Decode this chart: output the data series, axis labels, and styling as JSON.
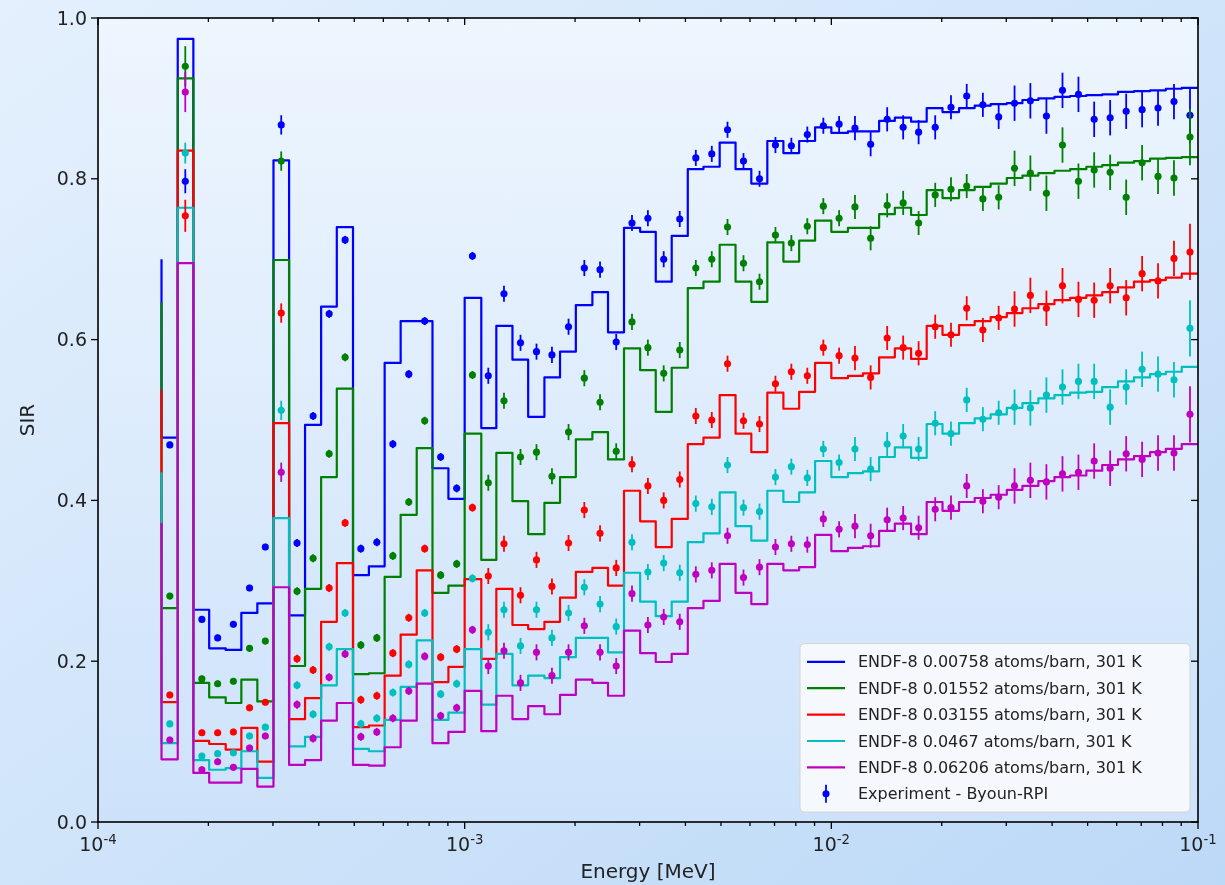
{
  "chart_data": {
    "type": "step",
    "xlabel": "Energy [MeV]",
    "ylabel": "SIR",
    "log": "x",
    "xlim": [
      0.0001,
      0.1
    ],
    "xticks": [
      {
        "value": 0.0001,
        "label": "10$^{-4}$"
      },
      {
        "value": 0.0002,
        "label": null
      },
      {
        "value": 0.0003,
        "label": null
      },
      {
        "value": 0.0004,
        "label": null
      },
      {
        "value": 0.0005,
        "label": null
      },
      {
        "value": 0.0006,
        "label": null
      },
      {
        "value": 0.0007,
        "label": null
      },
      {
        "value": 0.0008,
        "label": null
      },
      {
        "value": 0.0009,
        "label": null
      },
      {
        "value": 0.001,
        "label": "10$^{-3}$"
      },
      {
        "value": 0.002,
        "label": null
      },
      {
        "value": 0.003,
        "label": null
      },
      {
        "value": 0.004,
        "label": null
      },
      {
        "value": 0.005,
        "label": null
      },
      {
        "value": 0.006,
        "label": null
      },
      {
        "value": 0.007,
        "label": null
      },
      {
        "value": 0.008,
        "label": null
      },
      {
        "value": 0.009,
        "label": null
      },
      {
        "value": 0.01,
        "label": "10$^{-2}$"
      },
      {
        "value": 0.02,
        "label": null
      },
      {
        "value": 0.03,
        "label": null
      },
      {
        "value": 0.04,
        "label": null
      },
      {
        "value": 0.05,
        "label": null
      },
      {
        "value": 0.06,
        "label": null
      },
      {
        "value": 0.07,
        "label": null
      },
      {
        "value": 0.08,
        "label": null
      },
      {
        "value": 0.09,
        "label": null
      },
      {
        "value": 0.1,
        "label": "10$^{-1}$"
      }
    ],
    "ylim": [
      0,
      1
    ],
    "yticks": [
      {
        "value": 0,
        "label": "0.0"
      },
      {
        "value": 0.2,
        "label": "0.2"
      },
      {
        "value": 0.4,
        "label": "0.4"
      },
      {
        "value": 0.6,
        "label": "0.6"
      },
      {
        "value": 0.8,
        "label": "0.8"
      },
      {
        "value": 1,
        "label": "1.0"
      }
    ],
    "legend": "bottom right",
    "series": [
      {
        "name": "ENDF-8 0.00758 atoms/barn, 301 K",
        "color": "#0000ff",
        "x": [
          0.000149,
          0.000149,
          0.000165,
          0.000182,
          0.000201,
          0.000223,
          0.000246,
          0.000272,
          0.000301,
          0.000332,
          0.000367,
          0.000406,
          0.000448,
          0.000496,
          0.000548,
          0.000605,
          0.000669,
          0.00074,
          0.000817,
          0.000903,
          0.001,
          0.00111,
          0.00122,
          0.00135,
          0.00149,
          0.00165,
          0.00182,
          0.00201,
          0.00223,
          0.00246,
          0.00272,
          0.00301,
          0.00332,
          0.00367,
          0.00406,
          0.00448,
          0.00496,
          0.00548,
          0.00605,
          0.00669,
          0.0074,
          0.00817,
          0.00903,
          0.01,
          0.0111,
          0.0122,
          0.0135,
          0.0149,
          0.0165,
          0.0182,
          0.0201,
          0.0223,
          0.0246,
          0.0272,
          0.0301,
          0.0332,
          0.0367,
          0.0406,
          0.0448,
          0.0496,
          0.0548,
          0.0605,
          0.0669,
          0.074,
          0.0817,
          0.0903,
          0.1
        ],
        "values": [
          0.7,
          0.478,
          0.974,
          0.264,
          0.216,
          0.214,
          0.26,
          0.272,
          0.823,
          0.257,
          0.494,
          0.641,
          0.74,
          0.307,
          0.318,
          0.571,
          0.623,
          0.623,
          0.44,
          0.402,
          0.652,
          0.49,
          0.617,
          0.575,
          0.504,
          0.553,
          0.585,
          0.643,
          0.659,
          0.609,
          0.739,
          0.734,
          0.672,
          0.729,
          0.812,
          0.815,
          0.845,
          0.812,
          0.794,
          0.847,
          0.832,
          0.847,
          0.864,
          0.857,
          0.859,
          0.859,
          0.872,
          0.876,
          0.871,
          0.888,
          0.883,
          0.888,
          0.891,
          0.893,
          0.894,
          0.898,
          0.9,
          0.902,
          0.903,
          0.904,
          0.905,
          0.908,
          0.909,
          0.91,
          0.912,
          0.913,
          0.913
        ]
      },
      {
        "name": "ENDF-8 0.01552 atoms/barn, 301 K",
        "color": "#008000",
        "x": [
          0.000149,
          0.000149,
          0.000165,
          0.000182,
          0.000201,
          0.000223,
          0.000246,
          0.000272,
          0.000301,
          0.000332,
          0.000367,
          0.000406,
          0.000448,
          0.000496,
          0.000548,
          0.000605,
          0.000669,
          0.00074,
          0.000817,
          0.000903,
          0.001,
          0.00111,
          0.00122,
          0.00135,
          0.00149,
          0.00165,
          0.00182,
          0.00201,
          0.00223,
          0.00246,
          0.00272,
          0.00301,
          0.00332,
          0.00367,
          0.00406,
          0.00448,
          0.00496,
          0.00548,
          0.00605,
          0.00669,
          0.0074,
          0.00817,
          0.00903,
          0.01,
          0.0111,
          0.0122,
          0.0135,
          0.0149,
          0.0165,
          0.0182,
          0.0201,
          0.0223,
          0.0246,
          0.0272,
          0.0301,
          0.0332,
          0.0367,
          0.0406,
          0.0448,
          0.0496,
          0.0548,
          0.0605,
          0.0669,
          0.074,
          0.0817,
          0.0903,
          0.1
        ],
        "values": [
          0.646,
          0.266,
          0.925,
          0.173,
          0.155,
          0.148,
          0.177,
          0.15,
          0.699,
          0.194,
          0.29,
          0.429,
          0.539,
          0.184,
          0.185,
          0.305,
          0.382,
          0.465,
          0.285,
          0.294,
          0.483,
          0.326,
          0.459,
          0.399,
          0.358,
          0.397,
          0.429,
          0.476,
          0.485,
          0.451,
          0.589,
          0.562,
          0.51,
          0.565,
          0.664,
          0.672,
          0.718,
          0.672,
          0.647,
          0.721,
          0.697,
          0.723,
          0.748,
          0.734,
          0.739,
          0.739,
          0.756,
          0.764,
          0.755,
          0.786,
          0.776,
          0.786,
          0.79,
          0.794,
          0.801,
          0.804,
          0.807,
          0.81,
          0.812,
          0.815,
          0.817,
          0.82,
          0.822,
          0.825,
          0.826,
          0.827,
          0.827
        ]
      },
      {
        "name": "ENDF-8 0.03155 atoms/barn, 301 K",
        "color": "#ff0000",
        "x": [
          0.000149,
          0.000149,
          0.000165,
          0.000182,
          0.000201,
          0.000223,
          0.000246,
          0.000272,
          0.000301,
          0.000332,
          0.000367,
          0.000406,
          0.000448,
          0.000496,
          0.000548,
          0.000605,
          0.000669,
          0.00074,
          0.000817,
          0.000903,
          0.001,
          0.00111,
          0.00122,
          0.00135,
          0.00149,
          0.00165,
          0.00182,
          0.00201,
          0.00223,
          0.00246,
          0.00272,
          0.00301,
          0.00332,
          0.00367,
          0.00406,
          0.00448,
          0.00496,
          0.00548,
          0.00605,
          0.00669,
          0.0074,
          0.00817,
          0.00903,
          0.01,
          0.0111,
          0.0122,
          0.0135,
          0.0149,
          0.0165,
          0.0182,
          0.0201,
          0.0223,
          0.0246,
          0.0272,
          0.0301,
          0.0332,
          0.0367,
          0.0406,
          0.0448,
          0.0496,
          0.0548,
          0.0605,
          0.0669,
          0.074,
          0.0817,
          0.0903,
          0.1
        ],
        "values": [
          0.537,
          0.149,
          0.835,
          0.101,
          0.097,
          0.09,
          0.117,
          0.075,
          0.496,
          0.128,
          0.154,
          0.249,
          0.322,
          0.118,
          0.12,
          0.182,
          0.233,
          0.313,
          0.174,
          0.193,
          0.302,
          0.203,
          0.29,
          0.245,
          0.24,
          0.249,
          0.279,
          0.311,
          0.316,
          0.294,
          0.412,
          0.374,
          0.342,
          0.377,
          0.47,
          0.478,
          0.531,
          0.483,
          0.46,
          0.534,
          0.514,
          0.535,
          0.571,
          0.552,
          0.555,
          0.558,
          0.578,
          0.589,
          0.576,
          0.617,
          0.606,
          0.618,
          0.623,
          0.628,
          0.633,
          0.639,
          0.644,
          0.649,
          0.652,
          0.655,
          0.659,
          0.665,
          0.672,
          0.674,
          0.677,
          0.682,
          0.682
        ]
      },
      {
        "name": "ENDF-8 0.0467 atoms/barn, 301 K",
        "color": "#00bfbf",
        "x": [
          0.000149,
          0.000149,
          0.000165,
          0.000182,
          0.000201,
          0.000223,
          0.000246,
          0.000272,
          0.000301,
          0.000332,
          0.000367,
          0.000406,
          0.000448,
          0.000496,
          0.000548,
          0.000605,
          0.000669,
          0.00074,
          0.000817,
          0.000903,
          0.001,
          0.00111,
          0.00122,
          0.00135,
          0.00149,
          0.00165,
          0.00182,
          0.00201,
          0.00223,
          0.00246,
          0.00272,
          0.00301,
          0.00332,
          0.00367,
          0.00406,
          0.00448,
          0.00496,
          0.00548,
          0.00605,
          0.00669,
          0.0074,
          0.00817,
          0.00903,
          0.01,
          0.0111,
          0.0122,
          0.0135,
          0.0149,
          0.0165,
          0.0182,
          0.0201,
          0.0223,
          0.0246,
          0.0272,
          0.0301,
          0.0332,
          0.0367,
          0.0406,
          0.0448,
          0.0496,
          0.0548,
          0.0605,
          0.0669,
          0.074,
          0.0817,
          0.0903,
          0.1
        ],
        "values": [
          0.435,
          0.098,
          0.764,
          0.077,
          0.065,
          0.067,
          0.088,
          0.055,
          0.378,
          0.094,
          0.106,
          0.17,
          0.215,
          0.091,
          0.088,
          0.127,
          0.168,
          0.226,
          0.127,
          0.136,
          0.215,
          0.146,
          0.209,
          0.17,
          0.182,
          0.179,
          0.205,
          0.229,
          0.229,
          0.211,
          0.31,
          0.274,
          0.256,
          0.274,
          0.348,
          0.359,
          0.41,
          0.368,
          0.35,
          0.412,
          0.398,
          0.41,
          0.449,
          0.429,
          0.434,
          0.436,
          0.454,
          0.466,
          0.453,
          0.495,
          0.483,
          0.496,
          0.502,
          0.507,
          0.515,
          0.521,
          0.527,
          0.531,
          0.534,
          0.535,
          0.541,
          0.548,
          0.553,
          0.557,
          0.56,
          0.566,
          0.566
        ]
      },
      {
        "name": "ENDF-8 0.06206 atoms/barn, 301 K",
        "color": "#bf00bf",
        "x": [
          0.000149,
          0.000149,
          0.000165,
          0.000182,
          0.000201,
          0.000223,
          0.000246,
          0.000272,
          0.000301,
          0.000332,
          0.000367,
          0.000406,
          0.000448,
          0.000496,
          0.000548,
          0.000605,
          0.000669,
          0.00074,
          0.000817,
          0.000903,
          0.001,
          0.00111,
          0.00122,
          0.00135,
          0.00149,
          0.00165,
          0.00182,
          0.00201,
          0.00223,
          0.00246,
          0.00272,
          0.00301,
          0.00332,
          0.00367,
          0.00406,
          0.00448,
          0.00496,
          0.00548,
          0.00605,
          0.00669,
          0.0074,
          0.00817,
          0.00903,
          0.01,
          0.0111,
          0.0122,
          0.0135,
          0.0149,
          0.0165,
          0.0182,
          0.0201,
          0.0223,
          0.0246,
          0.0272,
          0.0301,
          0.0332,
          0.0367,
          0.0406,
          0.0448,
          0.0496,
          0.0548,
          0.0605,
          0.0669,
          0.074,
          0.0817,
          0.0903,
          0.1
        ],
        "values": [
          0.372,
          0.078,
          0.695,
          0.061,
          0.049,
          0.049,
          0.066,
          0.044,
          0.292,
          0.071,
          0.077,
          0.126,
          0.148,
          0.071,
          0.07,
          0.093,
          0.126,
          0.172,
          0.098,
          0.112,
          0.163,
          0.113,
          0.157,
          0.128,
          0.144,
          0.134,
          0.158,
          0.177,
          0.173,
          0.157,
          0.238,
          0.21,
          0.199,
          0.209,
          0.266,
          0.275,
          0.321,
          0.285,
          0.271,
          0.321,
          0.313,
          0.317,
          0.357,
          0.337,
          0.341,
          0.343,
          0.362,
          0.371,
          0.358,
          0.398,
          0.387,
          0.398,
          0.403,
          0.407,
          0.413,
          0.418,
          0.424,
          0.429,
          0.431,
          0.437,
          0.444,
          0.451,
          0.455,
          0.46,
          0.464,
          0.47,
          0.47
        ]
      },
      {
        "name": "Experiment - Byoun-RPI",
        "type": "scatter",
        "marker": "circle",
        "color": "#0000ff",
        "x": [
          0.000157,
          0.000173,
          0.000192,
          0.000212,
          0.000234,
          0.000259,
          0.000286,
          0.000316,
          0.000349,
          0.000386,
          0.000427,
          0.000472,
          0.000521,
          0.000576,
          0.000637,
          0.000704,
          0.000778,
          0.00086,
          0.000951,
          0.00105,
          0.00116,
          0.00128,
          0.00142,
          0.00157,
          0.00173,
          0.00192,
          0.00212,
          0.00234,
          0.00259,
          0.00286,
          0.00316,
          0.00349,
          0.00386,
          0.00427,
          0.00472,
          0.00521,
          0.00576,
          0.00637,
          0.00704,
          0.00778,
          0.0086,
          0.00951,
          0.0105,
          0.0116,
          0.0128,
          0.0142,
          0.0157,
          0.0173,
          0.0192,
          0.0212,
          0.0234,
          0.0259,
          0.0286,
          0.0316,
          0.0349,
          0.0386,
          0.0427,
          0.0472,
          0.0521,
          0.0576,
          0.0637,
          0.0704,
          0.0778,
          0.086,
          0.0951
        ],
        "values": [
          0.469,
          0.797,
          0.252,
          0.229,
          0.246,
          0.291,
          0.342,
          0.867,
          0.347,
          0.505,
          0.632,
          0.724,
          0.34,
          0.348,
          0.47,
          0.557,
          0.623,
          0.454,
          0.415,
          0.704,
          0.555,
          0.657,
          0.596,
          0.585,
          0.581,
          0.616,
          0.689,
          0.687,
          0.597,
          0.745,
          0.751,
          0.7,
          0.75,
          0.826,
          0.831,
          0.861,
          0.822,
          0.8,
          0.842,
          0.841,
          0.855,
          0.866,
          0.868,
          0.863,
          0.843,
          0.874,
          0.864,
          0.858,
          0.864,
          0.889,
          0.903,
          0.892,
          0.877,
          0.894,
          0.897,
          0.878,
          0.91,
          0.905,
          0.874,
          0.876,
          0.884,
          0.886,
          0.888,
          0.896,
          0.879
        ],
        "errors": [
          0.004,
          0.015,
          0.004,
          0.004,
          0.004,
          0.004,
          0.004,
          0.012,
          0.005,
          0.005,
          0.005,
          0.005,
          0.005,
          0.005,
          0.005,
          0.005,
          0.005,
          0.005,
          0.005,
          0.005,
          0.01,
          0.01,
          0.01,
          0.01,
          0.01,
          0.01,
          0.01,
          0.01,
          0.01,
          0.01,
          0.01,
          0.01,
          0.01,
          0.01,
          0.01,
          0.01,
          0.01,
          0.01,
          0.01,
          0.01,
          0.01,
          0.01,
          0.01,
          0.015,
          0.015,
          0.015,
          0.015,
          0.015,
          0.015,
          0.015,
          0.015,
          0.015,
          0.015,
          0.022,
          0.022,
          0.022,
          0.022,
          0.022,
          0.022,
          0.022,
          0.022,
          0.022,
          0.022,
          0.022,
          0.035
        ]
      },
      {
        "type": "scatter",
        "marker": "circle",
        "color": "#008000",
        "x": [
          0.000157,
          0.000173,
          0.000192,
          0.000212,
          0.000234,
          0.000259,
          0.000286,
          0.000316,
          0.000349,
          0.000386,
          0.000427,
          0.000472,
          0.000521,
          0.000576,
          0.000637,
          0.000704,
          0.000778,
          0.00086,
          0.000951,
          0.00105,
          0.00116,
          0.00128,
          0.00142,
          0.00157,
          0.00173,
          0.00192,
          0.00212,
          0.00234,
          0.00259,
          0.00286,
          0.00316,
          0.00349,
          0.00386,
          0.00427,
          0.00472,
          0.00521,
          0.00576,
          0.00637,
          0.00704,
          0.00778,
          0.0086,
          0.00951,
          0.0105,
          0.0116,
          0.0128,
          0.0142,
          0.0157,
          0.0173,
          0.0192,
          0.0212,
          0.0234,
          0.0259,
          0.0286,
          0.0316,
          0.0349,
          0.0386,
          0.0427,
          0.0472,
          0.0521,
          0.0576,
          0.0637,
          0.0704,
          0.0778,
          0.086,
          0.0951
        ],
        "values": [
          0.281,
          0.94,
          0.178,
          0.172,
          0.175,
          0.216,
          0.225,
          0.822,
          0.287,
          0.328,
          0.458,
          0.578,
          0.22,
          0.229,
          0.331,
          0.398,
          0.499,
          0.307,
          0.321,
          0.556,
          0.422,
          0.524,
          0.454,
          0.46,
          0.43,
          0.485,
          0.552,
          0.522,
          0.461,
          0.622,
          0.59,
          0.558,
          0.587,
          0.689,
          0.7,
          0.74,
          0.695,
          0.672,
          0.73,
          0.72,
          0.741,
          0.766,
          0.751,
          0.765,
          0.726,
          0.767,
          0.77,
          0.745,
          0.78,
          0.787,
          0.791,
          0.775,
          0.777,
          0.813,
          0.807,
          0.782,
          0.842,
          0.797,
          0.811,
          0.808,
          0.777,
          0.82,
          0.803,
          0.801,
          0.852
        ],
        "errors": [
          0.004,
          0.025,
          0.004,
          0.004,
          0.004,
          0.004,
          0.004,
          0.012,
          0.005,
          0.005,
          0.005,
          0.005,
          0.005,
          0.005,
          0.005,
          0.005,
          0.005,
          0.005,
          0.005,
          0.005,
          0.01,
          0.01,
          0.01,
          0.01,
          0.01,
          0.01,
          0.01,
          0.01,
          0.01,
          0.01,
          0.01,
          0.01,
          0.01,
          0.01,
          0.01,
          0.01,
          0.01,
          0.01,
          0.01,
          0.01,
          0.01,
          0.01,
          0.01,
          0.015,
          0.015,
          0.015,
          0.015,
          0.015,
          0.015,
          0.015,
          0.015,
          0.015,
          0.015,
          0.022,
          0.022,
          0.022,
          0.022,
          0.022,
          0.022,
          0.022,
          0.022,
          0.022,
          0.022,
          0.022,
          0.035
        ]
      },
      {
        "type": "scatter",
        "marker": "circle",
        "color": "#ff0000",
        "x": [
          0.000157,
          0.000173,
          0.000192,
          0.000212,
          0.000234,
          0.000259,
          0.000286,
          0.000316,
          0.000349,
          0.000386,
          0.000427,
          0.000472,
          0.000521,
          0.000576,
          0.000637,
          0.000704,
          0.000778,
          0.00086,
          0.000951,
          0.00105,
          0.00116,
          0.00128,
          0.00142,
          0.00157,
          0.00173,
          0.00192,
          0.00212,
          0.00234,
          0.00259,
          0.00286,
          0.00316,
          0.00349,
          0.00386,
          0.00427,
          0.00472,
          0.00521,
          0.00576,
          0.00637,
          0.00704,
          0.00778,
          0.0086,
          0.00951,
          0.0105,
          0.0116,
          0.0128,
          0.0142,
          0.0157,
          0.0173,
          0.0192,
          0.0212,
          0.0234,
          0.0259,
          0.0286,
          0.0316,
          0.0349,
          0.0386,
          0.0427,
          0.0472,
          0.0521,
          0.0576,
          0.0637,
          0.0704,
          0.0778,
          0.086,
          0.0951
        ],
        "values": [
          0.158,
          0.754,
          0.111,
          0.111,
          0.112,
          0.142,
          0.149,
          0.633,
          0.203,
          0.189,
          0.291,
          0.372,
          0.152,
          0.157,
          0.21,
          0.254,
          0.34,
          0.205,
          0.215,
          0.391,
          0.306,
          0.346,
          0.282,
          0.326,
          0.293,
          0.347,
          0.388,
          0.359,
          0.316,
          0.445,
          0.418,
          0.4,
          0.426,
          0.505,
          0.5,
          0.57,
          0.499,
          0.495,
          0.545,
          0.56,
          0.555,
          0.59,
          0.58,
          0.577,
          0.553,
          0.602,
          0.59,
          0.583,
          0.616,
          0.606,
          0.639,
          0.612,
          0.627,
          0.638,
          0.655,
          0.639,
          0.667,
          0.65,
          0.649,
          0.667,
          0.652,
          0.682,
          0.673,
          0.701,
          0.709
        ],
        "errors": [
          0.004,
          0.02,
          0.004,
          0.004,
          0.004,
          0.004,
          0.004,
          0.012,
          0.005,
          0.005,
          0.005,
          0.005,
          0.005,
          0.005,
          0.005,
          0.005,
          0.005,
          0.005,
          0.005,
          0.005,
          0.01,
          0.01,
          0.01,
          0.01,
          0.01,
          0.01,
          0.01,
          0.01,
          0.01,
          0.01,
          0.01,
          0.01,
          0.01,
          0.01,
          0.01,
          0.01,
          0.01,
          0.01,
          0.01,
          0.01,
          0.01,
          0.01,
          0.01,
          0.015,
          0.015,
          0.015,
          0.015,
          0.015,
          0.015,
          0.015,
          0.015,
          0.015,
          0.015,
          0.022,
          0.022,
          0.022,
          0.022,
          0.022,
          0.022,
          0.022,
          0.022,
          0.022,
          0.022,
          0.022,
          0.035
        ]
      },
      {
        "type": "scatter",
        "marker": "circle",
        "color": "#00bfbf",
        "x": [
          0.000157,
          0.000173,
          0.000192,
          0.000212,
          0.000234,
          0.000259,
          0.000286,
          0.000316,
          0.000349,
          0.000386,
          0.000427,
          0.000472,
          0.000521,
          0.000576,
          0.000637,
          0.000704,
          0.000778,
          0.00086,
          0.000951,
          0.00105,
          0.00116,
          0.00128,
          0.00142,
          0.00157,
          0.00173,
          0.00192,
          0.00212,
          0.00234,
          0.00259,
          0.00286,
          0.00316,
          0.00349,
          0.00386,
          0.00427,
          0.00472,
          0.00521,
          0.00576,
          0.00637,
          0.00704,
          0.00778,
          0.0086,
          0.00951,
          0.0105,
          0.0116,
          0.0128,
          0.0142,
          0.0157,
          0.0173,
          0.0192,
          0.0212,
          0.0234,
          0.0259,
          0.0286,
          0.0316,
          0.0349,
          0.0386,
          0.0427,
          0.0472,
          0.0521,
          0.0576,
          0.0637,
          0.0704,
          0.0778,
          0.086,
          0.0951
        ],
        "values": [
          0.122,
          0.832,
          0.082,
          0.085,
          0.086,
          0.107,
          0.118,
          0.512,
          0.17,
          0.134,
          0.218,
          0.26,
          0.122,
          0.129,
          0.161,
          0.196,
          0.26,
          0.159,
          0.172,
          0.303,
          0.236,
          0.264,
          0.219,
          0.264,
          0.229,
          0.26,
          0.292,
          0.271,
          0.243,
          0.348,
          0.311,
          0.322,
          0.31,
          0.396,
          0.392,
          0.444,
          0.391,
          0.386,
          0.429,
          0.442,
          0.428,
          0.464,
          0.447,
          0.464,
          0.439,
          0.47,
          0.48,
          0.464,
          0.496,
          0.483,
          0.525,
          0.501,
          0.509,
          0.516,
          0.515,
          0.531,
          0.541,
          0.548,
          0.548,
          0.516,
          0.541,
          0.563,
          0.557,
          0.55,
          0.614
        ],
        "errors": [
          0.004,
          0.013,
          0.004,
          0.004,
          0.004,
          0.004,
          0.004,
          0.012,
          0.005,
          0.005,
          0.005,
          0.005,
          0.005,
          0.005,
          0.005,
          0.005,
          0.005,
          0.005,
          0.005,
          0.005,
          0.01,
          0.01,
          0.01,
          0.01,
          0.01,
          0.01,
          0.01,
          0.01,
          0.01,
          0.01,
          0.01,
          0.01,
          0.01,
          0.01,
          0.01,
          0.01,
          0.01,
          0.01,
          0.01,
          0.01,
          0.01,
          0.01,
          0.01,
          0.015,
          0.015,
          0.015,
          0.015,
          0.015,
          0.015,
          0.015,
          0.015,
          0.015,
          0.015,
          0.022,
          0.022,
          0.022,
          0.022,
          0.022,
          0.022,
          0.022,
          0.022,
          0.022,
          0.022,
          0.022,
          0.035
        ]
      },
      {
        "type": "scatter",
        "marker": "circle",
        "color": "#bf00bf",
        "x": [
          0.000157,
          0.000173,
          0.000192,
          0.000212,
          0.000234,
          0.000259,
          0.000286,
          0.000316,
          0.000349,
          0.000386,
          0.000427,
          0.000472,
          0.000521,
          0.000576,
          0.000637,
          0.000704,
          0.000778,
          0.00086,
          0.000951,
          0.00105,
          0.00116,
          0.00128,
          0.00142,
          0.00157,
          0.00173,
          0.00192,
          0.00212,
          0.00234,
          0.00259,
          0.00286,
          0.00316,
          0.00349,
          0.00386,
          0.00427,
          0.00472,
          0.00521,
          0.00576,
          0.00637,
          0.00704,
          0.00778,
          0.0086,
          0.00951,
          0.0105,
          0.0116,
          0.0128,
          0.0142,
          0.0157,
          0.0173,
          0.0192,
          0.0212,
          0.0234,
          0.0259,
          0.0286,
          0.0316,
          0.0349,
          0.0386,
          0.0427,
          0.0472,
          0.0521,
          0.0576,
          0.0637,
          0.0704,
          0.0778,
          0.086,
          0.0951
        ],
        "values": [
          0.102,
          0.908,
          0.065,
          0.075,
          0.068,
          0.092,
          0.107,
          0.435,
          0.146,
          0.104,
          0.18,
          0.209,
          0.106,
          0.112,
          0.129,
          0.163,
          0.206,
          0.132,
          0.142,
          0.239,
          0.194,
          0.213,
          0.173,
          0.211,
          0.182,
          0.211,
          0.244,
          0.211,
          0.194,
          0.284,
          0.245,
          0.255,
          0.249,
          0.308,
          0.313,
          0.356,
          0.304,
          0.317,
          0.342,
          0.346,
          0.345,
          0.377,
          0.364,
          0.368,
          0.356,
          0.376,
          0.378,
          0.366,
          0.389,
          0.391,
          0.418,
          0.399,
          0.404,
          0.418,
          0.425,
          0.423,
          0.433,
          0.435,
          0.449,
          0.44,
          0.458,
          0.451,
          0.459,
          0.459,
          0.507
        ],
        "errors": [
          0.004,
          0.025,
          0.004,
          0.004,
          0.004,
          0.004,
          0.004,
          0.012,
          0.005,
          0.005,
          0.005,
          0.005,
          0.005,
          0.005,
          0.005,
          0.005,
          0.005,
          0.005,
          0.005,
          0.005,
          0.01,
          0.01,
          0.01,
          0.01,
          0.01,
          0.01,
          0.01,
          0.01,
          0.01,
          0.01,
          0.01,
          0.01,
          0.01,
          0.01,
          0.01,
          0.01,
          0.01,
          0.01,
          0.01,
          0.01,
          0.01,
          0.01,
          0.01,
          0.015,
          0.015,
          0.015,
          0.015,
          0.015,
          0.015,
          0.015,
          0.015,
          0.015,
          0.015,
          0.022,
          0.022,
          0.022,
          0.022,
          0.022,
          0.022,
          0.022,
          0.022,
          0.022,
          0.022,
          0.022,
          0.035
        ]
      }
    ]
  }
}
